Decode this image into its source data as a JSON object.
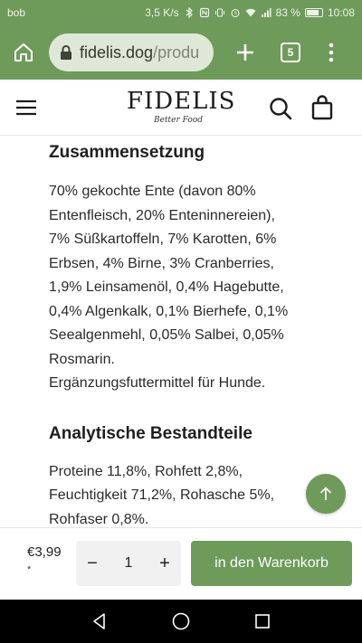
{
  "statusbar": {
    "carrier": "bob",
    "speed": "3,5 K/s",
    "battery_percent": "83 %",
    "battery_level": 0.83,
    "time": "10:08"
  },
  "browser": {
    "url_host": "fidelis.dog",
    "url_path": "/produ",
    "tab_count": "5"
  },
  "header": {
    "brand": "FIDELIS",
    "tagline": "Better Food"
  },
  "sections": [
    {
      "title": "Zusammensetzung",
      "text": "70% gekochte Ente (davon 80%\nEntenfleisch, 20% Enteninnereien),\n7% Süßkartoffeln, 7% Karotten, 6%\nErbsen, 4% Birne, 3% Cranberries,\n1,9% Leinsamenöl, 0,4% Hagebutte,\n0,4% Algenkalk, 0,1% Bierhefe, 0,1%\nSeealgenmehl, 0,05% Salbei, 0,05%\nRosmarin.\nErgänzungsfuttermittel für Hunde."
    },
    {
      "title": "Analytische Bestandteile",
      "text": "Proteine 11,8%, Rohfett 2,8%,\nFeuchtigkeit 71,2%, Rohasche 5%,\nRohfaser 0,8%."
    }
  ],
  "purchase": {
    "price": "€3,99",
    "price_note": "*",
    "quantity": "1",
    "minus_label": "−",
    "plus_label": "+",
    "add_to_cart_label": "in den Warenkorb"
  },
  "colors": {
    "accent": "#6e9a5a",
    "url_bg": "#dfe8d8",
    "qty_bg": "#f1f1f1"
  },
  "icons": {
    "browser": [
      "home-icon",
      "lock-icon",
      "plus-icon",
      "tab-switcher-icon",
      "more-vert-icon"
    ],
    "site": [
      "hamburger-menu-icon",
      "search-icon",
      "shopping-bag-icon",
      "arrow-up-icon"
    ],
    "system": [
      "back-icon",
      "home-circle-icon",
      "recents-icon"
    ]
  }
}
